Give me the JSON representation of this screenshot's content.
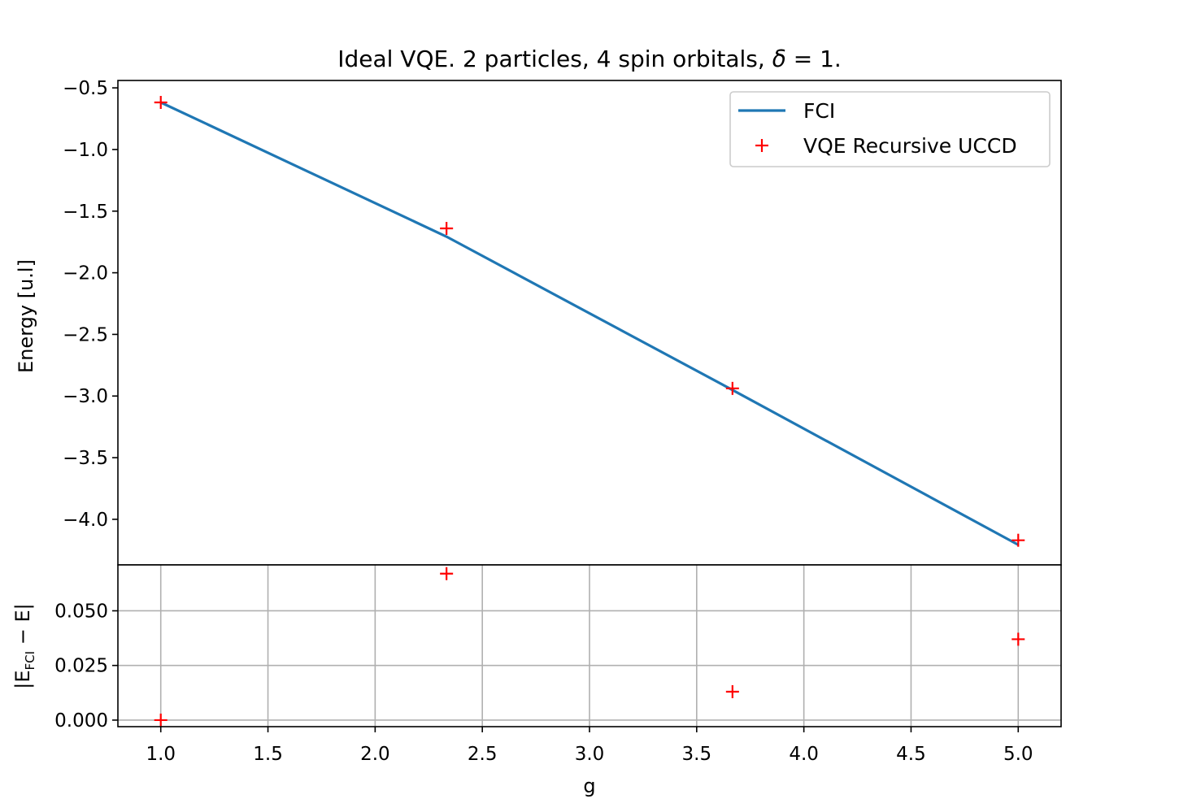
{
  "chart_data": {
    "type": "line",
    "title_parts": [
      "Ideal VQE. 2 particles, 4 spin orbitals, ",
      "δ",
      " = 1."
    ],
    "xlabel": "g",
    "xlim": [
      0.8,
      5.2
    ],
    "xticks": [
      1.0,
      1.5,
      2.0,
      2.5,
      3.0,
      3.5,
      4.0,
      4.5,
      5.0
    ],
    "xtick_labels": [
      "1.0",
      "1.5",
      "2.0",
      "2.5",
      "3.0",
      "3.5",
      "4.0",
      "4.5",
      "5.0"
    ],
    "panels": [
      {
        "name": "energy",
        "ylabel": "Energy [u.l]",
        "ylim": [
          -4.37,
          -0.44
        ],
        "yticks": [
          -0.5,
          -1.0,
          -1.5,
          -2.0,
          -2.5,
          -3.0,
          -3.5,
          -4.0
        ],
        "ytick_labels": [
          "−0.5",
          "−1.0",
          "−1.5",
          "−2.0",
          "−2.5",
          "−3.0",
          "−3.5",
          "−4.0"
        ],
        "grid": false,
        "legend_position": "top-right",
        "series": [
          {
            "name": "FCI",
            "style": "line",
            "color": "#1f77b4",
            "x": [
              1.0,
              2.333,
              3.667,
              5.0
            ],
            "y": [
              -0.618,
              -1.707,
              -2.951,
              -4.207
            ]
          },
          {
            "name": "VQE Recursive UCCD",
            "style": "marker-plus",
            "color": "#ff0000",
            "x": [
              1.0,
              2.333,
              3.667,
              5.0
            ],
            "y": [
              -0.618,
              -1.64,
              -2.938,
              -4.17
            ]
          }
        ]
      },
      {
        "name": "error",
        "ylabel_parts": [
          "|E",
          "FCI",
          " − E|"
        ],
        "ylim": [
          -0.003,
          0.071
        ],
        "yticks": [
          0.0,
          0.025,
          0.05
        ],
        "ytick_labels": [
          "0.000",
          "0.025",
          "0.050"
        ],
        "grid": true,
        "series": [
          {
            "style": "marker-plus",
            "color": "#ff0000",
            "x": [
              1.0,
              2.333,
              3.667,
              5.0
            ],
            "y": [
              0.0,
              0.067,
              0.013,
              0.037
            ]
          }
        ]
      }
    ]
  }
}
